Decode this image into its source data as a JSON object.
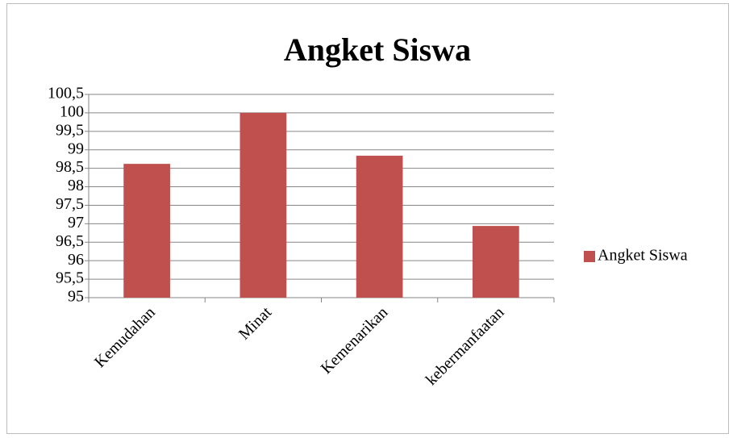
{
  "chart_data": {
    "type": "bar",
    "title": "Angket Siswa",
    "categories": [
      "Kemudahan",
      "Minat",
      "Kemenarikan",
      "kebermanfaatan"
    ],
    "series": [
      {
        "name": "Angket Siswa",
        "color": "#c0504d",
        "values": [
          98.62,
          100,
          98.84,
          96.94
        ]
      }
    ],
    "ylim": [
      95,
      100.5
    ],
    "yticks": [
      95,
      {
        "value": 95.5,
        "label": "95,5"
      },
      96,
      {
        "value": 96.5,
        "label": "96,5"
      },
      97,
      {
        "value": 97.5,
        "label": "97,5"
      },
      98,
      {
        "value": 98.5,
        "label": "98,5"
      },
      99,
      {
        "value": 99.5,
        "label": "99,5"
      },
      100,
      {
        "value": 100.5,
        "label": "100,5"
      }
    ],
    "grid": true,
    "legend": "right"
  }
}
